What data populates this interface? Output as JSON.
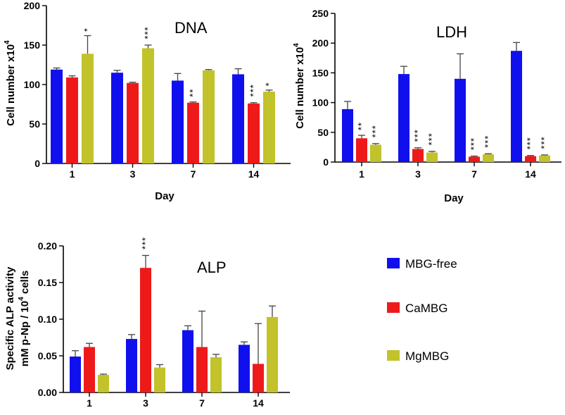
{
  "colors": {
    "MBG-free": "#1010ee",
    "CaMBG": "#ee1a1a",
    "MgMBG": "#c2c22a"
  },
  "legend": [
    "MBG-free",
    "CaMBG",
    "MgMBG"
  ],
  "chart_data": [
    {
      "id": "dna",
      "type": "bar",
      "title": "DNA",
      "ylabel_main": "Cell number x10",
      "ylabel_sup": "4",
      "xlabel": "Day",
      "categories": [
        "1",
        "3",
        "7",
        "14"
      ],
      "ylim": [
        0,
        200
      ],
      "yticks": [
        0,
        50,
        100,
        150,
        200
      ],
      "tick_labels": [
        "0",
        "50",
        "100",
        "150",
        "200"
      ],
      "series": [
        {
          "name": "MBG-free",
          "values": [
            119,
            115,
            105,
            113
          ],
          "errors": [
            2,
            3,
            9,
            7
          ]
        },
        {
          "name": "CaMBG",
          "values": [
            109,
            102,
            77,
            76
          ],
          "errors": [
            2,
            1,
            1,
            1
          ]
        },
        {
          "name": "MgMBG",
          "values": [
            139,
            146,
            118,
            91
          ],
          "errors": [
            23,
            4,
            1,
            2
          ]
        }
      ],
      "significance": [
        [
          "",
          "",
          "*"
        ],
        [
          "",
          "",
          "***"
        ],
        [
          "",
          "**",
          ""
        ],
        [
          "",
          "***",
          "*"
        ]
      ]
    },
    {
      "id": "ldh",
      "type": "bar",
      "title": "LDH",
      "ylabel_main": "Cell number x10",
      "ylabel_sup": "4",
      "xlabel": "Day",
      "categories": [
        "1",
        "3",
        "7",
        "14"
      ],
      "ylim": [
        0,
        250
      ],
      "yticks": [
        0,
        50,
        100,
        150,
        200,
        250
      ],
      "tick_labels": [
        "0",
        "50",
        "100",
        "150",
        "200",
        "250"
      ],
      "series": [
        {
          "name": "MBG-free",
          "values": [
            89,
            148,
            140,
            187
          ],
          "errors": [
            13,
            13,
            42,
            14
          ]
        },
        {
          "name": "CaMBG",
          "values": [
            40,
            22,
            9,
            10
          ],
          "errors": [
            5,
            2,
            1,
            1
          ]
        },
        {
          "name": "MgMBG",
          "values": [
            29,
            16,
            13,
            11
          ],
          "errors": [
            2,
            2,
            1,
            1
          ]
        }
      ],
      "significance": [
        [
          "",
          "**",
          "***"
        ],
        [
          "",
          "***",
          "***"
        ],
        [
          "",
          "***",
          "***"
        ],
        [
          "",
          "***",
          "***"
        ]
      ]
    },
    {
      "id": "alp",
      "type": "bar",
      "title": "ALP",
      "ylabel_line1": "Specific ALP activity",
      "ylabel_line2_pre": "mM p-Np / 10",
      "ylabel_line2_sup": "4",
      "ylabel_line2_post": " cells",
      "xlabel": "",
      "categories": [
        "1",
        "3",
        "7",
        "14"
      ],
      "ylim": [
        0,
        0.2
      ],
      "yticks": [
        0,
        0.05,
        0.1,
        0.15,
        0.2
      ],
      "tick_labels": [
        "0.00",
        "0.05",
        "0.10",
        "0.15",
        "0.20"
      ],
      "series": [
        {
          "name": "MBG-free",
          "values": [
            0.049,
            0.073,
            0.085,
            0.065
          ],
          "errors": [
            0.008,
            0.006,
            0.006,
            0.004
          ]
        },
        {
          "name": "CaMBG",
          "values": [
            0.062,
            0.17,
            0.062,
            0.039
          ],
          "errors": [
            0.005,
            0.017,
            0.049,
            0.055
          ]
        },
        {
          "name": "MgMBG",
          "values": [
            0.024,
            0.034,
            0.048,
            0.103
          ],
          "errors": [
            0.001,
            0.004,
            0.004,
            0.015
          ]
        }
      ],
      "significance": [
        [
          "",
          "",
          ""
        ],
        [
          "",
          "***",
          ""
        ],
        [
          "",
          "",
          ""
        ],
        [
          "",
          "",
          ""
        ]
      ]
    }
  ]
}
